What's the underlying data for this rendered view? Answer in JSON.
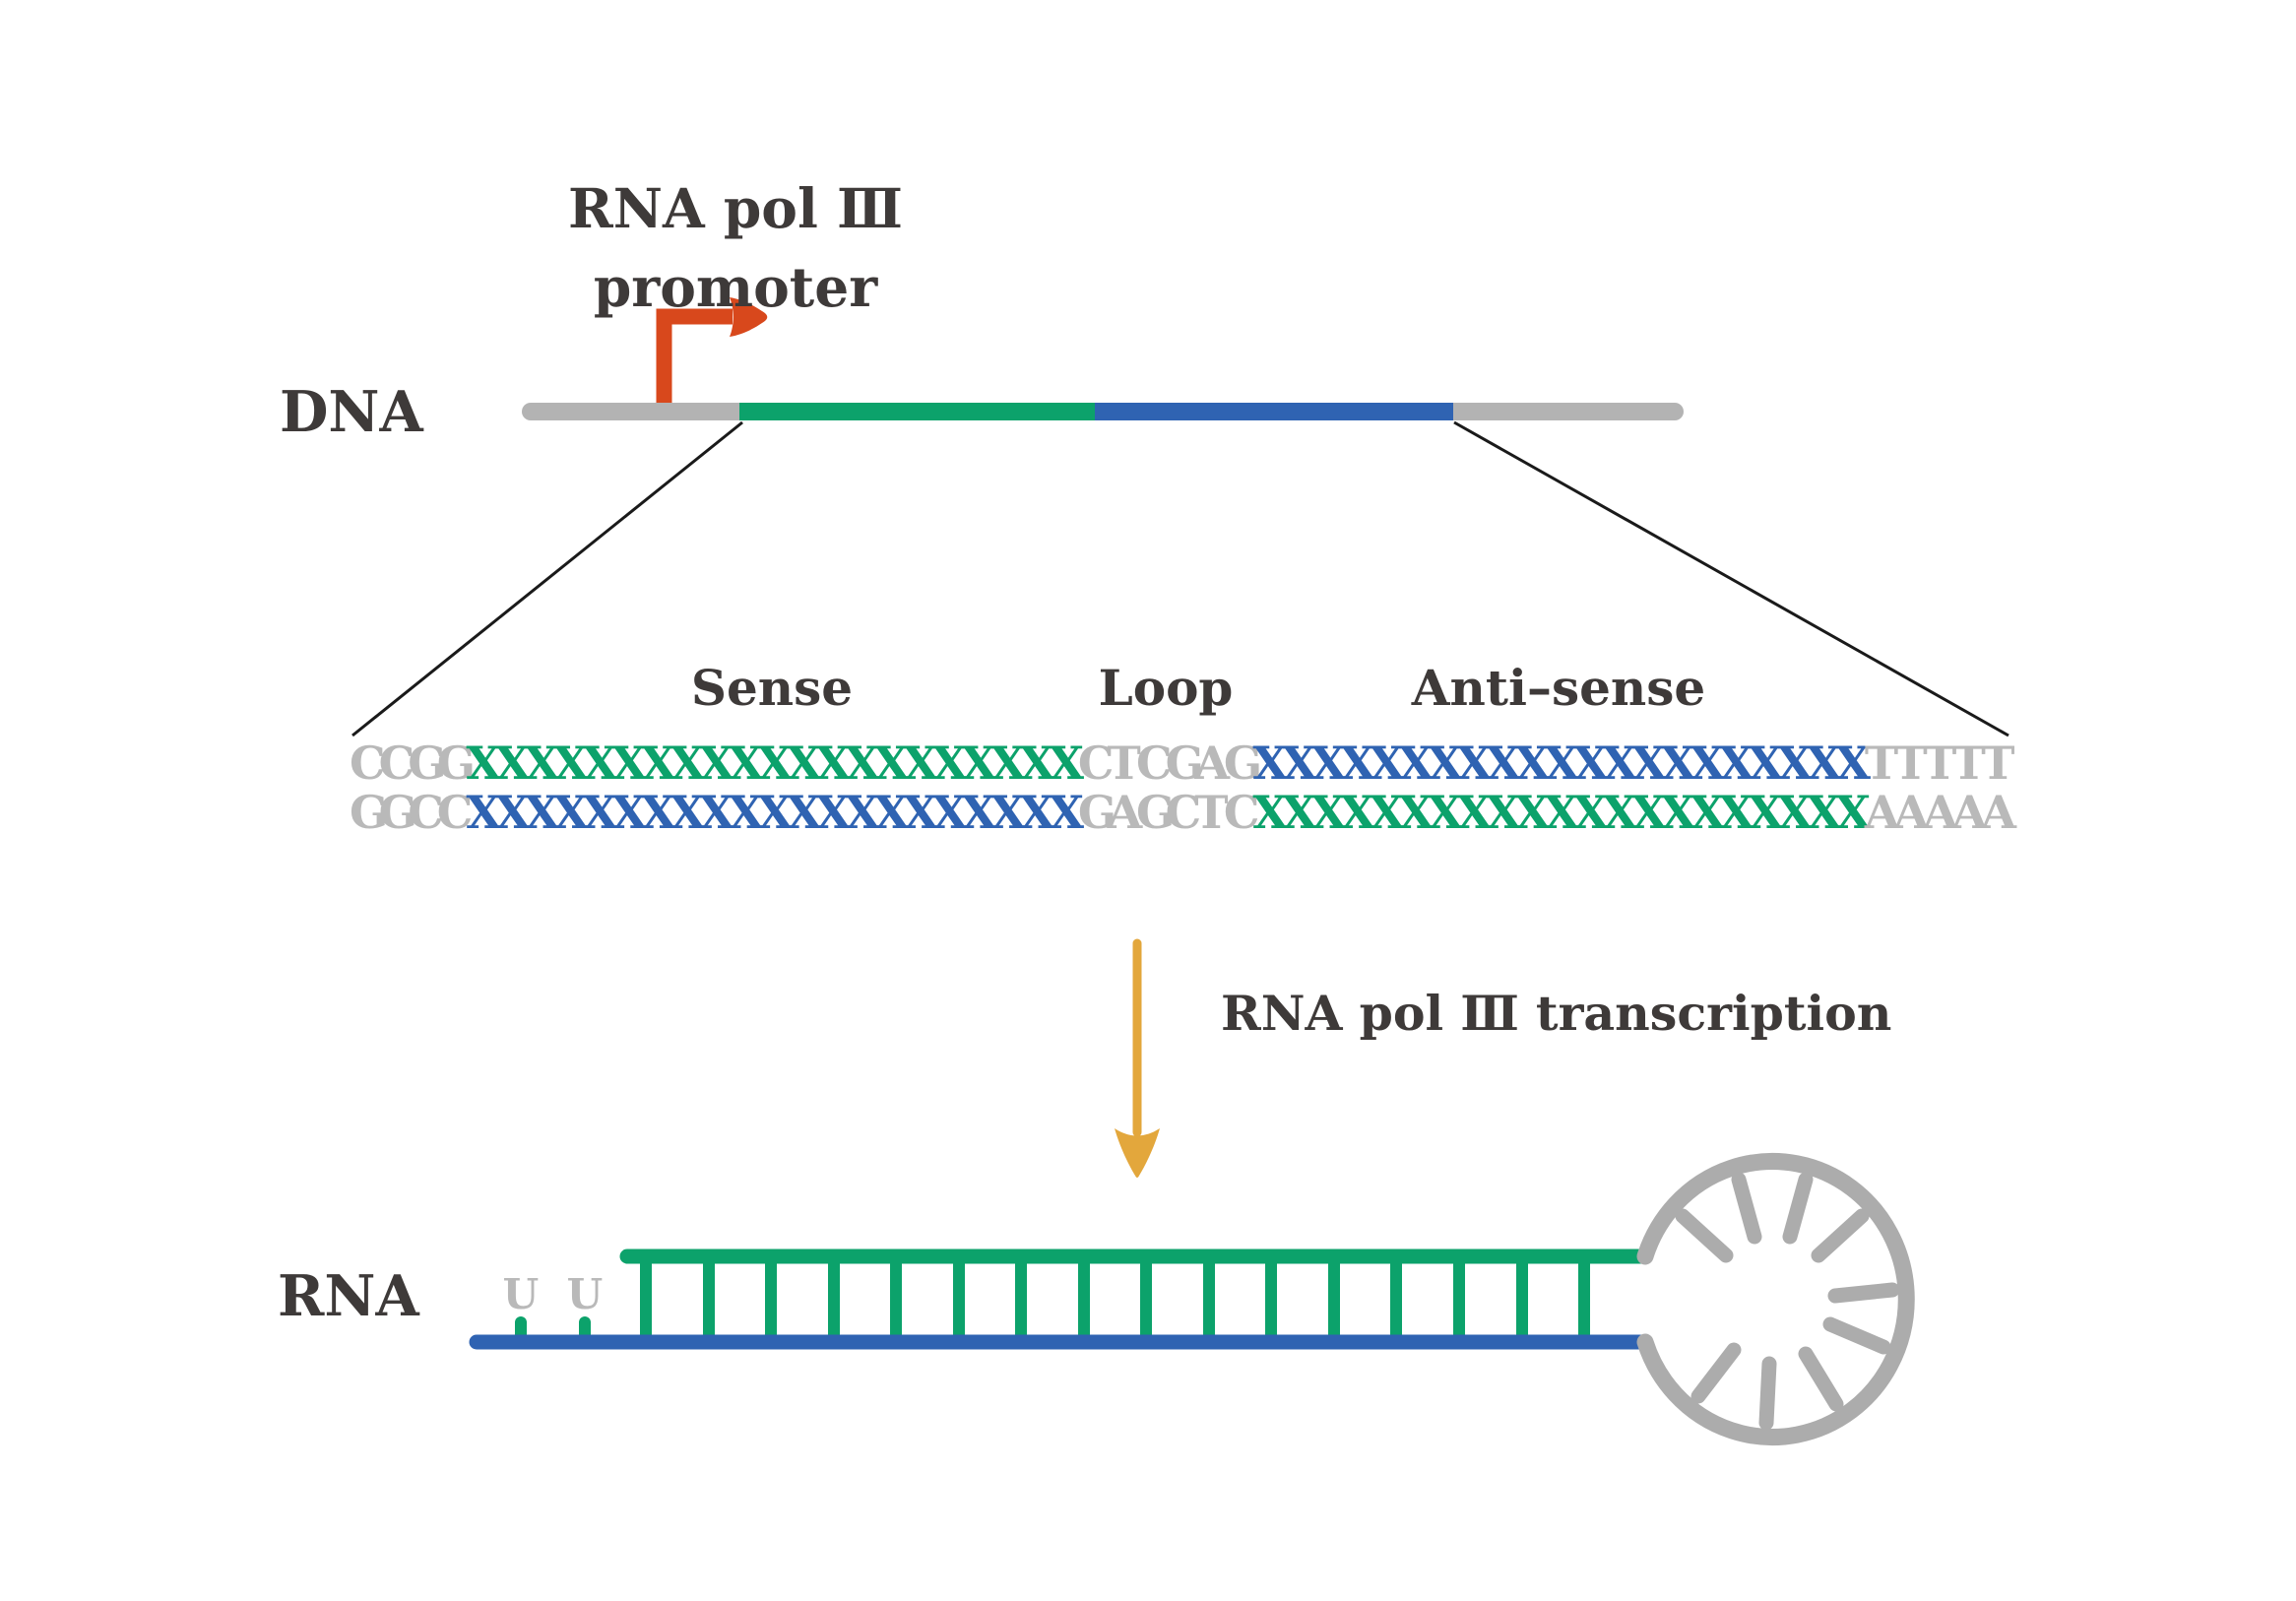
{
  "palette": {
    "green": "#0ca26b",
    "blue": "#2f63b2",
    "seq_gray": "#b9b9b9",
    "bar_gray": "#b3b3b3",
    "loop_gray": "#acacac",
    "text_dark": "#3e3a39",
    "promoter_orange": "#d8481c",
    "arrow_gold": "#e3a73c",
    "line_black": "#1a1a1a"
  },
  "title": {
    "line1": "RNA pol Ⅲ",
    "line2": "promoter"
  },
  "dna": {
    "label": "DNA"
  },
  "sequence": {
    "labels": {
      "sense": "Sense",
      "loop": "Loop",
      "antisense": "Anti–sense"
    },
    "top_strand": [
      {
        "text": "CCGG",
        "color": "gray"
      },
      {
        "text": "XXXXXXXXXXXXXXXXXXXXX",
        "color": "green"
      },
      {
        "text": "CTCGAG",
        "color": "gray"
      },
      {
        "text": "XXXXXXXXXXXXXXXXXXXXX",
        "color": "blue"
      },
      {
        "text": "TTTTT",
        "color": "gray"
      }
    ],
    "bottom_strand": [
      {
        "text": "GGCC",
        "color": "gray"
      },
      {
        "text": "XXXXXXXXXXXXXXXXXXXXX",
        "color": "blue"
      },
      {
        "text": "GAGCTC",
        "color": "gray"
      },
      {
        "text": "XXXXXXXXXXXXXXXXXXXXX",
        "color": "green"
      },
      {
        "text": "AAAAA",
        "color": "gray"
      }
    ]
  },
  "transcription": {
    "label": "RNA pol Ⅲ transcription"
  },
  "rna": {
    "label": "RNA",
    "overhang": [
      "U",
      "U"
    ]
  }
}
